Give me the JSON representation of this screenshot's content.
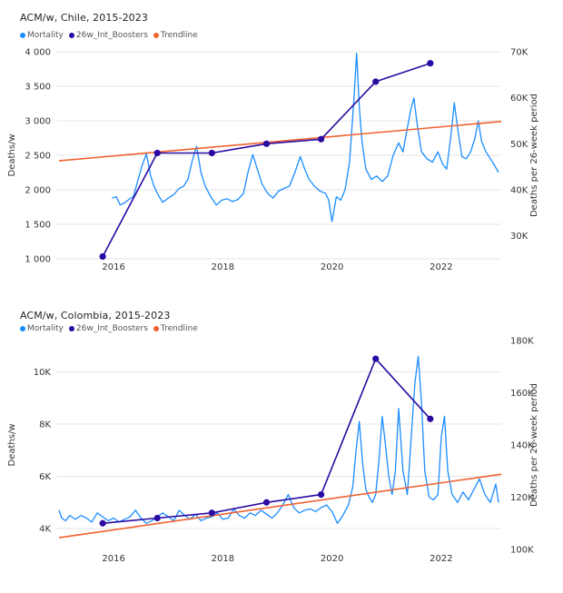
{
  "colors": {
    "mortality": "#1a8cff",
    "boosters": "#2a0aa3",
    "trendline": "#f2612f",
    "grid": "#e6e6e6"
  },
  "chart_data": [
    {
      "type": "line",
      "title": "ACM/w, Chile, 2015-2023",
      "legend": [
        "Mortality",
        "26w_Int_Boosters",
        "Trendline"
      ],
      "legend_position": "top-left",
      "xlabel": "",
      "ylabel": "Deaths/w",
      "y2label": "Deaths per 26-week period",
      "x_ticks": [
        "2016",
        "2018",
        "2020",
        "2022"
      ],
      "y_ticks": [
        "1 000",
        "1 500",
        "2 000",
        "2 500",
        "3 000",
        "3 500",
        "4 000"
      ],
      "y_ticks_values": [
        1000,
        1500,
        2000,
        2500,
        3000,
        3500,
        4000
      ],
      "y2_ticks": [
        "30K",
        "40K",
        "50K",
        "60K",
        "70K"
      ],
      "y2_ticks_values": [
        30000,
        40000,
        50000,
        60000,
        70000
      ],
      "xlim": [
        2014.95,
        2023.1
      ],
      "ylim": [
        1000,
        4000
      ],
      "y2lim": [
        25000,
        70000
      ],
      "grid": "horizontal",
      "series": [
        {
          "name": "Mortality",
          "axis": "left",
          "x": [
            2015.97,
            2016.05,
            2016.12,
            2016.2,
            2016.28,
            2016.36,
            2016.45,
            2016.52,
            2016.6,
            2016.68,
            2016.74,
            2016.82,
            2016.9,
            2017.0,
            2017.1,
            2017.2,
            2017.28,
            2017.36,
            2017.44,
            2017.52,
            2017.6,
            2017.68,
            2017.78,
            2017.88,
            2017.98,
            2018.08,
            2018.18,
            2018.28,
            2018.38,
            2018.46,
            2018.55,
            2018.63,
            2018.72,
            2018.82,
            2018.92,
            2019.02,
            2019.12,
            2019.22,
            2019.32,
            2019.42,
            2019.5,
            2019.58,
            2019.68,
            2019.78,
            2019.88,
            2019.94,
            2020.0,
            2020.08,
            2020.16,
            2020.24,
            2020.32,
            2020.4,
            2020.45,
            2020.5,
            2020.55,
            2020.62,
            2020.72,
            2020.82,
            2020.92,
            2021.02,
            2021.12,
            2021.22,
            2021.3,
            2021.38,
            2021.44,
            2021.5,
            2021.56,
            2021.64,
            2021.74,
            2021.84,
            2021.94,
            2022.02,
            2022.1,
            2022.18,
            2022.24,
            2022.3,
            2022.38,
            2022.46,
            2022.54,
            2022.62,
            2022.68,
            2022.74,
            2022.82,
            2022.9,
            2022.98,
            2023.05
          ],
          "values": [
            1880,
            1900,
            1780,
            1810,
            1860,
            1900,
            2150,
            2350,
            2520,
            2200,
            2050,
            1920,
            1820,
            1880,
            1930,
            2020,
            2050,
            2150,
            2420,
            2630,
            2250,
            2050,
            1900,
            1780,
            1850,
            1870,
            1830,
            1860,
            1950,
            2250,
            2510,
            2300,
            2080,
            1950,
            1880,
            1980,
            2020,
            2050,
            2250,
            2480,
            2300,
            2150,
            2050,
            1980,
            1950,
            1850,
            1540,
            1900,
            1850,
            2000,
            2400,
            3300,
            3980,
            3200,
            2700,
            2300,
            2150,
            2200,
            2120,
            2200,
            2500,
            2680,
            2550,
            2900,
            3150,
            3330,
            2950,
            2550,
            2450,
            2400,
            2550,
            2380,
            2300,
            2800,
            3260,
            2900,
            2480,
            2450,
            2550,
            2750,
            3000,
            2700,
            2550,
            2450,
            2350,
            2250
          ]
        },
        {
          "name": "26w_Int_Boosters",
          "axis": "right",
          "x": [
            2015.8,
            2016.8,
            2017.8,
            2018.8,
            2019.8,
            2020.8,
            2021.8
          ],
          "values": [
            25500,
            48000,
            48000,
            50000,
            51000,
            63500,
            67500
          ]
        },
        {
          "name": "Trendline",
          "axis": "left",
          "x": [
            2015.0,
            2023.1
          ],
          "values": [
            2420,
            2990
          ]
        }
      ]
    },
    {
      "type": "line",
      "title": "ACM/w, Colombia, 2015-2023",
      "legend": [
        "Mortality",
        "26w_Int_Boosters",
        "Trendline"
      ],
      "legend_position": "top-left",
      "xlabel": "",
      "ylabel": "Deaths/w",
      "y2label": "Deaths per 26-week period",
      "x_ticks": [
        "2016",
        "2018",
        "2020",
        "2022"
      ],
      "y_ticks": [
        "4K",
        "6K",
        "8K",
        "10K"
      ],
      "y_ticks_values": [
        4000,
        6000,
        8000,
        10000
      ],
      "y2_ticks": [
        "100K",
        "120K",
        "140K",
        "160K",
        "180K"
      ],
      "y2_ticks_values": [
        100000,
        120000,
        140000,
        160000,
        180000
      ],
      "xlim": [
        2014.95,
        2023.1
      ],
      "ylim": [
        3200,
        11200
      ],
      "y2lim": [
        100000,
        180000
      ],
      "grid": "horizontal",
      "series": [
        {
          "name": "Mortality",
          "axis": "left",
          "x": [
            2015.0,
            2015.05,
            2015.12,
            2015.2,
            2015.3,
            2015.4,
            2015.5,
            2015.6,
            2015.7,
            2015.8,
            2015.9,
            2016.0,
            2016.1,
            2016.2,
            2016.3,
            2016.4,
            2016.5,
            2016.6,
            2016.7,
            2016.8,
            2016.9,
            2017.0,
            2017.1,
            2017.2,
            2017.3,
            2017.4,
            2017.5,
            2017.6,
            2017.7,
            2017.8,
            2017.9,
            2018.0,
            2018.1,
            2018.2,
            2018.3,
            2018.4,
            2018.5,
            2018.6,
            2018.7,
            2018.8,
            2018.9,
            2019.0,
            2019.1,
            2019.2,
            2019.3,
            2019.4,
            2019.5,
            2019.6,
            2019.7,
            2019.8,
            2019.9,
            2020.0,
            2020.1,
            2020.2,
            2020.3,
            2020.38,
            2020.44,
            2020.5,
            2020.56,
            2020.62,
            2020.68,
            2020.74,
            2020.8,
            2020.86,
            2020.92,
            2020.98,
            2021.04,
            2021.1,
            2021.16,
            2021.22,
            2021.3,
            2021.38,
            2021.42,
            2021.46,
            2021.52,
            2021.58,
            2021.64,
            2021.7,
            2021.78,
            2021.86,
            2021.94,
            2022.0,
            2022.06,
            2022.12,
            2022.2,
            2022.3,
            2022.4,
            2022.5,
            2022.6,
            2022.7,
            2022.8,
            2022.9,
            2023.0,
            2023.05
          ],
          "values": [
            4700,
            4400,
            4300,
            4500,
            4350,
            4500,
            4400,
            4250,
            4600,
            4450,
            4300,
            4400,
            4250,
            4350,
            4450,
            4700,
            4400,
            4200,
            4300,
            4450,
            4600,
            4450,
            4300,
            4700,
            4500,
            4350,
            4550,
            4300,
            4400,
            4450,
            4600,
            4350,
            4400,
            4750,
            4500,
            4400,
            4600,
            4500,
            4700,
            4550,
            4400,
            4600,
            4900,
            5300,
            4800,
            4600,
            4700,
            4750,
            4650,
            4800,
            4900,
            4650,
            4200,
            4500,
            4900,
            5600,
            7000,
            8100,
            6500,
            5500,
            5200,
            5000,
            5300,
            6600,
            8300,
            7200,
            6000,
            5300,
            6200,
            8600,
            6200,
            5300,
            6500,
            7800,
            9600,
            10600,
            8800,
            6200,
            5200,
            5100,
            5300,
            7500,
            8300,
            6200,
            5300,
            5000,
            5400,
            5100,
            5500,
            5900,
            5300,
            5000,
            5700,
            5000
          ]
        },
        {
          "name": "26w_Int_Boosters",
          "axis": "right",
          "x": [
            2015.8,
            2016.8,
            2017.8,
            2018.8,
            2019.8,
            2020.8,
            2021.8
          ],
          "values": [
            110000,
            112000,
            114000,
            118000,
            121000,
            173000,
            150000
          ]
        },
        {
          "name": "Trendline",
          "axis": "left",
          "x": [
            2015.0,
            2023.1
          ],
          "values": [
            3650,
            6080
          ]
        }
      ]
    }
  ]
}
